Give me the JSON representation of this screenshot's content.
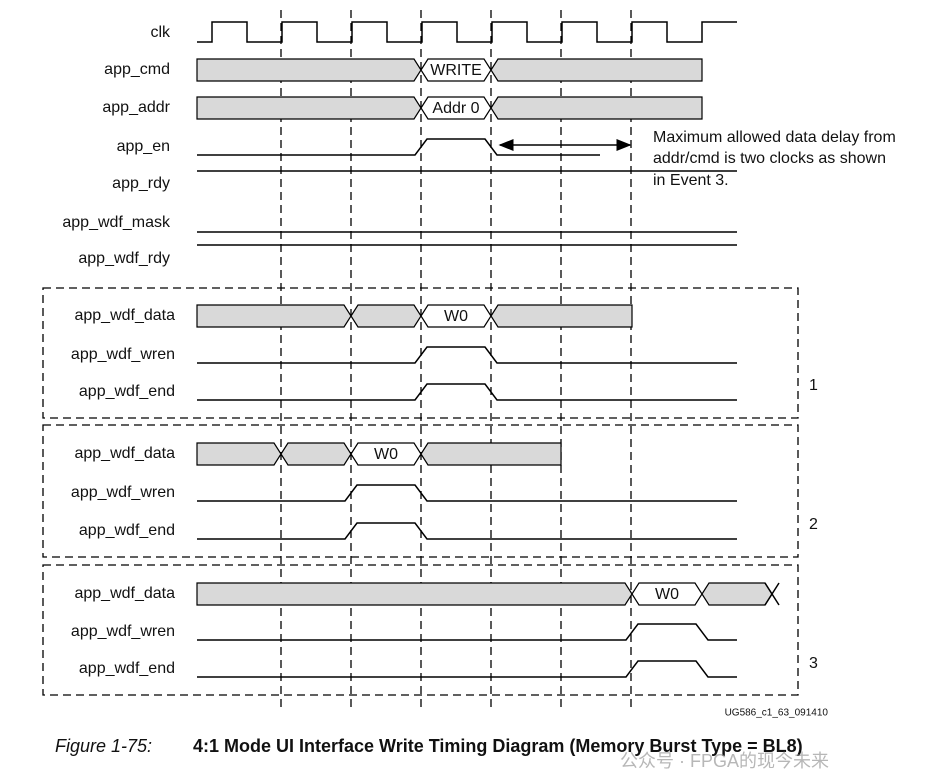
{
  "rows": [
    {
      "label": "clk"
    },
    {
      "label": "app_cmd",
      "bus_value": "WRITE"
    },
    {
      "label": "app_addr",
      "bus_value": "Addr 0"
    },
    {
      "label": "app_en"
    },
    {
      "label": "app_rdy"
    },
    {
      "label": "app_wdf_mask"
    },
    {
      "label": "app_wdf_rdy"
    }
  ],
  "annotation": [
    "Maximum allowed data delay from",
    "addr/cmd is two clocks as shown",
    "in Event 3."
  ],
  "events": [
    {
      "number": "1",
      "rows": [
        "app_wdf_data",
        "app_wdf_wren",
        "app_wdf_end"
      ],
      "data_value": "W0"
    },
    {
      "number": "2",
      "rows": [
        "app_wdf_data",
        "app_wdf_wren",
        "app_wdf_end"
      ],
      "data_value": "W0"
    },
    {
      "number": "3",
      "rows": [
        "app_wdf_data",
        "app_wdf_wren",
        "app_wdf_end"
      ],
      "data_value": "W0"
    }
  ],
  "figure_id": "UG586_c1_63_091410",
  "caption": {
    "number": "Figure 1-75:",
    "title": "4:1 Mode UI Interface Write Timing Diagram (Memory Burst Type = BL8)"
  },
  "watermark": "公众号 · FPGA的现今未来"
}
